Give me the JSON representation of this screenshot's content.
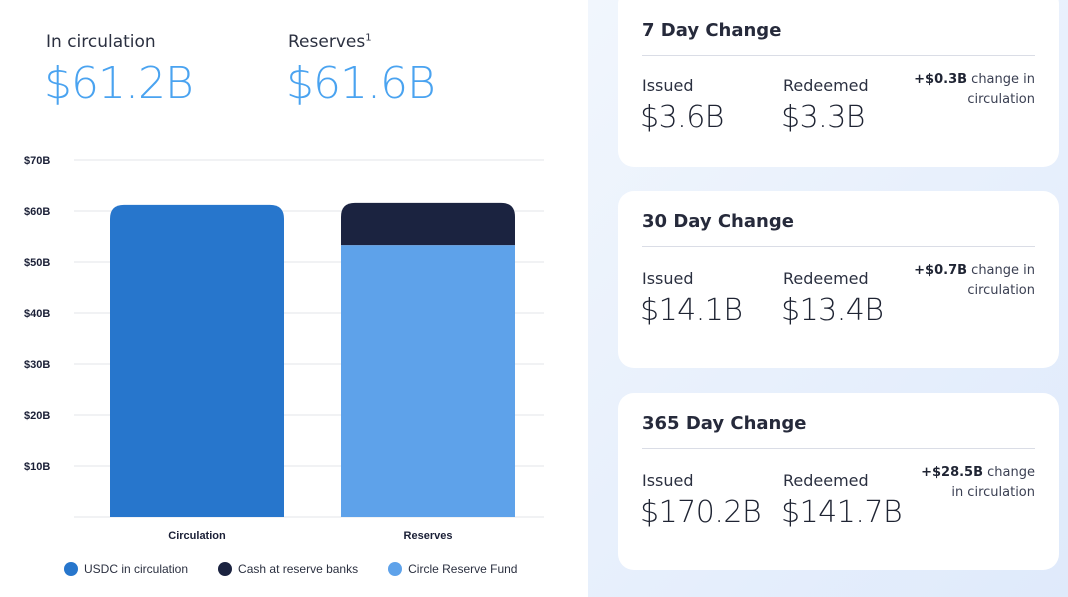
{
  "summary": {
    "circulation_label": "In circulation",
    "circulation_value": "$61.2B",
    "reserves_label": "Reserves",
    "reserves_footnote": "1",
    "reserves_value": "$61.6B"
  },
  "chart_data": {
    "type": "bar",
    "stacked": true,
    "categories": [
      "Circulation",
      "Reserves"
    ],
    "series": [
      {
        "name": "USDC in circulation",
        "color": "#2776cc",
        "values": [
          61.2,
          0
        ]
      },
      {
        "name": "Circle Reserve Fund",
        "color": "#5ea2ea",
        "values": [
          0,
          53.3
        ]
      },
      {
        "name": "Cash at reserve banks",
        "color": "#1b2340",
        "values": [
          0,
          8.3
        ]
      }
    ],
    "legend_order": [
      "USDC in circulation",
      "Cash at reserve banks",
      "Circle Reserve Fund"
    ],
    "yticks": [
      "$10B",
      "$20B",
      "$30B",
      "$40B",
      "$50B",
      "$60B",
      "$70B"
    ],
    "ytick_values": [
      10,
      20,
      30,
      40,
      50,
      60,
      70
    ],
    "ylim": [
      0,
      70
    ],
    "grid": true,
    "legend_position": "bottom"
  },
  "cards": [
    {
      "title": "7 Day Change",
      "issued_label": "Issued",
      "issued_value": "$3.6B",
      "redeemed_label": "Redeemed",
      "redeemed_value": "$3.3B",
      "change_amount": "+$0.3B",
      "change_text_1": "change in",
      "change_text_2": "circulation"
    },
    {
      "title": "30 Day Change",
      "issued_label": "Issued",
      "issued_value": "$14.1B",
      "redeemed_label": "Redeemed",
      "redeemed_value": "$13.4B",
      "change_amount": "+$0.7B",
      "change_text_1": "change in",
      "change_text_2": "circulation"
    },
    {
      "title": "365 Day Change",
      "issued_label": "Issued",
      "issued_value": "$170.2B",
      "redeemed_label": "Redeemed",
      "redeemed_value": "$141.7B",
      "change_amount": "+$28.5B",
      "change_text_1": "change",
      "change_text_2": "in circulation"
    }
  ]
}
